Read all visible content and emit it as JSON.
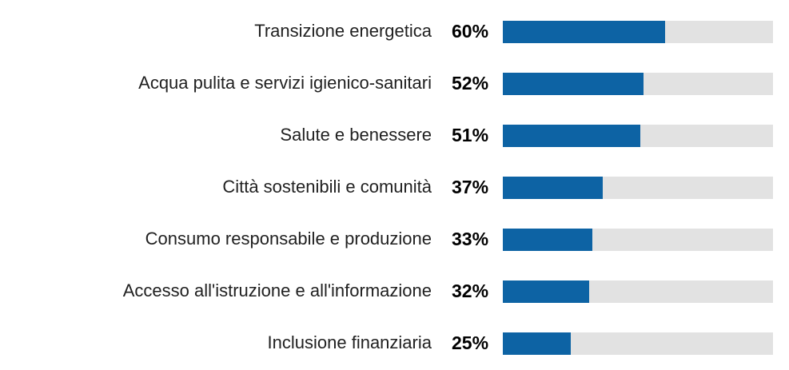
{
  "chart_data": {
    "type": "bar",
    "orientation": "horizontal",
    "title": "",
    "xlabel": "",
    "ylabel": "",
    "xlim": [
      0,
      100
    ],
    "grid": false,
    "legend": false,
    "categories": [
      "Transizione energetica",
      "Acqua pulita e servizi igienico-sanitari",
      "Salute e benessere",
      "Città sostenibili e comunità",
      "Consumo responsabile e produzione",
      "Accesso all'istruzione e all'informazione",
      "Inclusione finanziaria"
    ],
    "values": [
      60,
      52,
      51,
      37,
      33,
      32,
      25
    ],
    "value_labels": [
      "60%",
      "52%",
      "51%",
      "37%",
      "33%",
      "32%",
      "25%"
    ],
    "colors": {
      "bar": "#0d63a4",
      "track": "#e2e2e2",
      "label_text": "#212121",
      "value_text": "#000000",
      "background": "#ffffff"
    }
  }
}
